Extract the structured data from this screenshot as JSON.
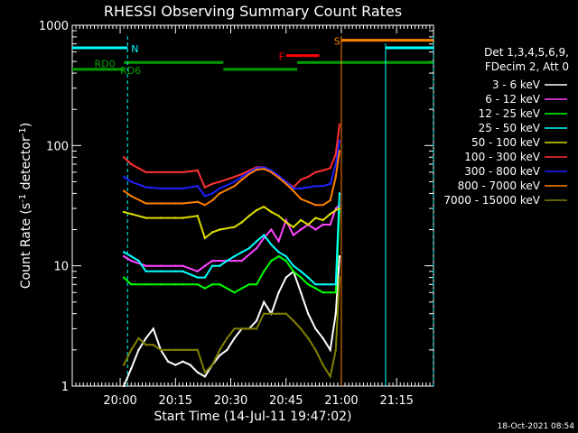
{
  "chart_data": {
    "type": "line",
    "title": "RHESSI Observing Summary Count Rates",
    "xlabel": "Start Time (14-Jul-11 19:47:02)",
    "ylabel_main": "Count Rate (s",
    "ylabel_sup": "-1",
    "ylabel_mid": " detector",
    "ylabel_end": ")",
    "y_scale": "log",
    "ylim": [
      1,
      1000
    ],
    "xlim_min": [
      0,
      98
    ],
    "x_ticks": [
      {
        "min": 13,
        "label": "20:00"
      },
      {
        "min": 28,
        "label": "20:15"
      },
      {
        "min": 43,
        "label": "20:30"
      },
      {
        "min": 58,
        "label": "20:45"
      },
      {
        "min": 73,
        "label": "21:00"
      },
      {
        "min": 88,
        "label": "21:15"
      }
    ],
    "y_ticks": [
      {
        "value": 1,
        "label": "1"
      },
      {
        "value": 10,
        "label": "10"
      },
      {
        "value": 100,
        "label": "100"
      },
      {
        "value": 1000,
        "label": "1000"
      }
    ],
    "legend_header": [
      "Det 1,3,4,5,6,9,",
      "FDecim 2, Att 0"
    ],
    "series": [
      {
        "name": "3 - 6 keV",
        "color": "#ffffff",
        "x": [
          14,
          16,
          18,
          20,
          22,
          24,
          26,
          28,
          30,
          32,
          34,
          36,
          38,
          40,
          42,
          44,
          46,
          48,
          50,
          52,
          54,
          56,
          58,
          60,
          62,
          64,
          66,
          68,
          70,
          71.5,
          72.5
        ],
        "y": [
          1,
          1.4,
          2,
          2.5,
          3,
          2,
          1.6,
          1.5,
          1.6,
          1.5,
          1.3,
          1.2,
          1.5,
          1.8,
          2,
          2.5,
          3,
          3,
          3.5,
          5,
          4,
          6,
          8,
          9,
          6,
          4,
          3,
          2.5,
          2,
          4,
          12
        ]
      },
      {
        "name": "6 - 12 keV",
        "color": "#ff44ff",
        "x": [
          14,
          16,
          20,
          24,
          28,
          30,
          34,
          36,
          38,
          40,
          44,
          46,
          50,
          52,
          54,
          56,
          58,
          60,
          62,
          64,
          66,
          68,
          70,
          71.5,
          72.5
        ],
        "y": [
          12,
          11,
          10,
          10,
          10,
          10,
          9,
          10,
          11,
          11,
          11,
          11,
          14,
          17,
          20,
          16,
          24,
          18,
          20,
          22,
          20,
          22,
          22,
          30,
          32
        ]
      },
      {
        "name": "12 - 25 keV",
        "color": "#00ff00",
        "x": [
          14,
          16,
          20,
          24,
          28,
          30,
          34,
          36,
          38,
          40,
          44,
          46,
          48,
          50,
          52,
          54,
          56,
          58,
          60,
          62,
          64,
          66,
          68,
          70,
          71.5,
          72.5
        ],
        "y": [
          8,
          7,
          7,
          7,
          7,
          7,
          7,
          6.5,
          7,
          7,
          6,
          6.5,
          7,
          7,
          9,
          11,
          12,
          11,
          9,
          8,
          7,
          6.5,
          6,
          6,
          6,
          30
        ]
      },
      {
        "name": "25 - 50 keV",
        "color": "#00ffff",
        "x": [
          14,
          16,
          18,
          20,
          24,
          28,
          30,
          34,
          36,
          38,
          40,
          42,
          44,
          46,
          48,
          50,
          52,
          54,
          56,
          58,
          60,
          62,
          64,
          66,
          68,
          70,
          71.5,
          72.5
        ],
        "y": [
          13,
          12,
          11,
          9,
          9,
          9,
          9,
          8,
          8,
          10,
          10,
          11,
          12,
          13,
          14,
          16,
          18,
          15,
          13,
          12,
          10,
          9,
          8,
          7,
          7,
          7,
          7,
          40
        ]
      },
      {
        "name": "50 - 100 keV",
        "color": "#dddd00",
        "x": [
          14,
          16,
          20,
          24,
          28,
          30,
          34,
          36,
          38,
          40,
          44,
          46,
          48,
          50,
          52,
          54,
          56,
          58,
          60,
          62,
          64,
          66,
          68,
          70,
          71.5,
          72.5
        ],
        "y": [
          28,
          27,
          25,
          25,
          25,
          25,
          26,
          17,
          19,
          20,
          21,
          23,
          26,
          29,
          31,
          28,
          26,
          23,
          21,
          24,
          22,
          25,
          24,
          27,
          29,
          30
        ]
      },
      {
        "name": "100 - 300 keV",
        "color": "#ff3030",
        "x": [
          14,
          16,
          20,
          24,
          28,
          30,
          34,
          36,
          38,
          40,
          44,
          46,
          48,
          50,
          52,
          54,
          56,
          58,
          60,
          62,
          64,
          66,
          68,
          70,
          71.5,
          72.5
        ],
        "y": [
          80,
          70,
          60,
          60,
          60,
          60,
          62,
          45,
          48,
          50,
          55,
          58,
          62,
          66,
          66,
          62,
          56,
          50,
          45,
          52,
          55,
          60,
          62,
          65,
          85,
          150
        ]
      },
      {
        "name": "300 - 800 keV",
        "color": "#2020ff",
        "x": [
          14,
          16,
          20,
          24,
          28,
          30,
          34,
          36,
          38,
          40,
          44,
          46,
          48,
          50,
          52,
          54,
          56,
          58,
          60,
          62,
          64,
          66,
          68,
          70,
          71.5,
          72.5
        ],
        "y": [
          55,
          50,
          45,
          44,
          44,
          44,
          46,
          38,
          40,
          44,
          50,
          55,
          60,
          65,
          66,
          62,
          56,
          50,
          44,
          44,
          45,
          46,
          46,
          48,
          70,
          110
        ]
      },
      {
        "name": "800 - 7000 keV",
        "color": "#ff8000",
        "x": [
          14,
          16,
          20,
          24,
          28,
          30,
          34,
          36,
          38,
          40,
          44,
          46,
          48,
          50,
          52,
          54,
          56,
          58,
          60,
          62,
          64,
          66,
          68,
          70,
          71.5,
          72.5
        ],
        "y": [
          42,
          38,
          33,
          33,
          33,
          33,
          34,
          32,
          35,
          40,
          46,
          52,
          58,
          63,
          64,
          60,
          54,
          48,
          42,
          36,
          34,
          32,
          32,
          35,
          55,
          90
        ]
      },
      {
        "name": "7000 - 15000 keV",
        "color": "#808000",
        "x": [
          14,
          16,
          18,
          20,
          22,
          24,
          26,
          28,
          30,
          32,
          34,
          36,
          38,
          40,
          42,
          44,
          46,
          48,
          50,
          52,
          54,
          56,
          58,
          60,
          62,
          64,
          66,
          68,
          70,
          71.5,
          72.5
        ],
        "y": [
          1.5,
          2,
          2.5,
          2.2,
          2.2,
          2,
          2,
          2,
          2,
          2,
          2,
          1.3,
          1.5,
          2,
          2.5,
          3,
          3,
          3,
          3,
          4,
          4,
          4,
          4,
          3.5,
          3,
          2.5,
          2,
          1.5,
          1.2,
          2,
          8
        ]
      }
    ],
    "annotations": [
      {
        "label": "N",
        "color": "#00ffff",
        "x_min": 15
      },
      {
        "label": "RD0",
        "color": "#00a000"
      },
      {
        "label": "RD6",
        "color": "#00a000"
      },
      {
        "label": "F",
        "color": "#ff0000"
      },
      {
        "label": "S",
        "color": "#ff8000"
      }
    ],
    "flags": {
      "night": [
        {
          "start": 0,
          "end": 15,
          "level": 650
        },
        {
          "start": 85,
          "end": 98,
          "level": 650
        }
      ],
      "saa": [
        {
          "start": 73,
          "end": 98,
          "level": 750
        }
      ],
      "flare": [
        {
          "start": 58,
          "end": 67,
          "level": 560
        }
      ],
      "rd0": [
        {
          "start": 14,
          "end": 41,
          "level": 490
        },
        {
          "start": 61,
          "end": 98,
          "level": 490
        }
      ],
      "rd6": [
        {
          "start": 0,
          "end": 14,
          "level": 430
        },
        {
          "start": 41,
          "end": 61,
          "level": 430
        }
      ]
    },
    "footer": "18-Oct-2021 08:54"
  }
}
